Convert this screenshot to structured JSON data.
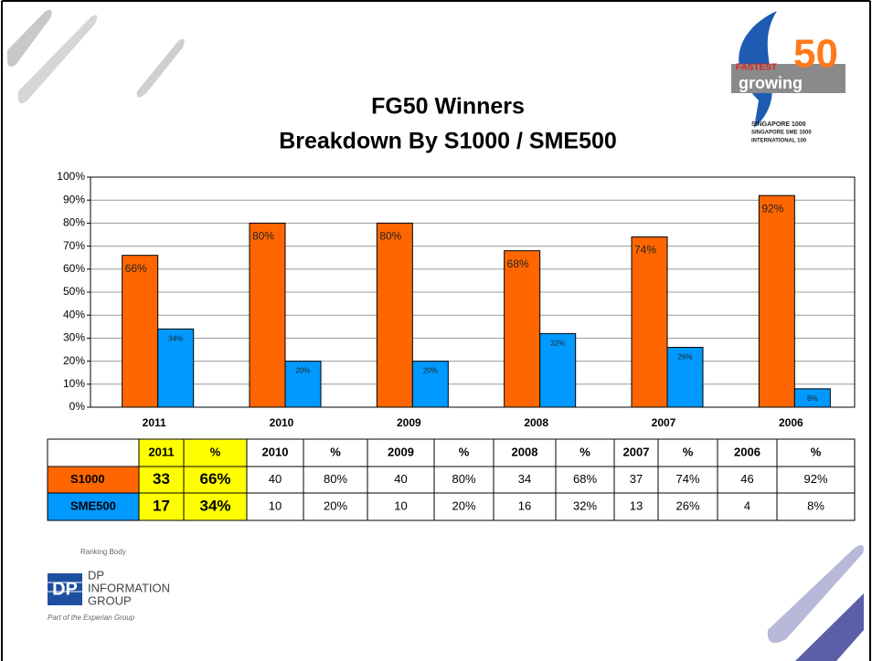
{
  "chart_data": {
    "type": "bar",
    "title": "FG50 Winners",
    "subtitle": "Breakdown By S1000 / SME500",
    "categories": [
      "2011",
      "2010",
      "2009",
      "2008",
      "2007",
      "2006"
    ],
    "series": [
      {
        "name": "S1000",
        "color": "#ff6600",
        "values": [
          66,
          80,
          80,
          68,
          74,
          92
        ],
        "value_labels": [
          "66%",
          "80%",
          "80%",
          "68%",
          "74%",
          "92%"
        ]
      },
      {
        "name": "SME500",
        "color": "#0099ff",
        "values": [
          34,
          20,
          20,
          32,
          26,
          8
        ],
        "value_labels": [
          "34%",
          "20%",
          "20%",
          "32%",
          "26%",
          "8%"
        ]
      }
    ],
    "ylim": [
      0,
      100
    ],
    "yticks": [
      {
        "value": 0,
        "label": "0%"
      },
      {
        "value": 10,
        "label": "10%"
      },
      {
        "value": 20,
        "label": "20%"
      },
      {
        "value": 30,
        "label": "30%"
      },
      {
        "value": 40,
        "label": "40%"
      },
      {
        "value": 50,
        "label": "50%"
      },
      {
        "value": 60,
        "label": "60%"
      },
      {
        "value": 70,
        "label": "70%"
      },
      {
        "value": 80,
        "label": "80%"
      },
      {
        "value": 90,
        "label": "90%"
      },
      {
        "value": 100,
        "label": "100%"
      }
    ],
    "grid": true
  },
  "table": {
    "highlight_color": "#ffff00",
    "columns": [
      "2011",
      "%",
      "2010",
      "%",
      "2009",
      "%",
      "2008",
      "%",
      "2007",
      "%",
      "2006",
      "%"
    ],
    "rows": [
      [
        33,
        "66%",
        40,
        "80%",
        40,
        "80%",
        34,
        "68%",
        37,
        "74%",
        46,
        "92%"
      ],
      [
        17,
        "34%",
        10,
        "20%",
        10,
        "20%",
        16,
        "32%",
        13,
        "26%",
        4,
        "8%"
      ]
    ]
  },
  "logo": {
    "top": "FASTEST",
    "word": "growing",
    "number": "50",
    "lines": [
      "SINGAPORE 1000",
      "SINGAPORE SME 1000",
      "INTERNATIONAL 100"
    ]
  },
  "footer": {
    "caption": "Ranking Body",
    "mark": "DP",
    "company": [
      "INFORMATION",
      "GROUP"
    ],
    "tagline": "Part of the Experian Group"
  }
}
